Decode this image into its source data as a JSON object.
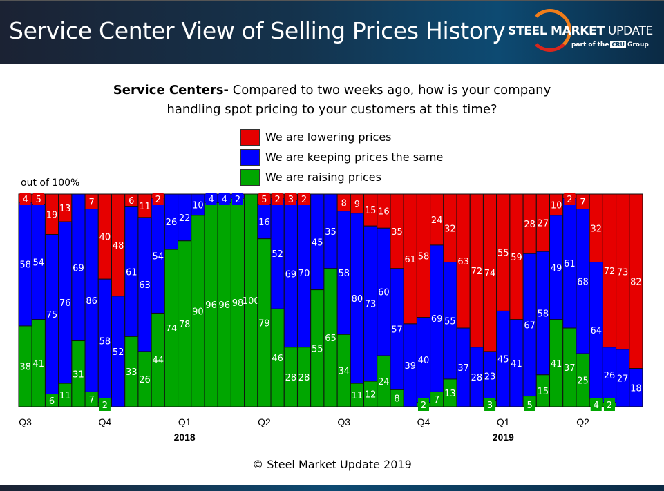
{
  "header": {
    "title": "Service Center View of Selling Prices History",
    "logo_name_bold": "STEEL MARKET",
    "logo_name_light": "UPDATE",
    "logo_sub_pre": "part of the",
    "logo_sub_brand": "CRU",
    "logo_sub_post": "Group"
  },
  "footer": "© Steel Market Update 2019",
  "colors": {
    "lower": "#e60000",
    "same": "#0000ff",
    "raise": "#00a600"
  },
  "chart_data": {
    "type": "bar",
    "stacked": true,
    "title_bold": "Service Centers-",
    "title": " Compared to two weeks ago, how is your company",
    "title_line2": "handling spot pricing to your customers at this time?",
    "ylabel": "out of 100%",
    "ylim": [
      0,
      100
    ],
    "legend": [
      "We are lowering prices",
      "We are keeping prices the same",
      "We are raising prices"
    ],
    "legend_placement": "top-center",
    "quarter_ticks": [
      {
        "bar": 0,
        "label": "Q3"
      },
      {
        "bar": 6,
        "label": "Q4"
      },
      {
        "bar": 12,
        "label": "Q1",
        "year": "2018"
      },
      {
        "bar": 18,
        "label": "Q2"
      },
      {
        "bar": 24,
        "label": "Q3"
      },
      {
        "bar": 30,
        "label": "Q4"
      },
      {
        "bar": 36,
        "label": "Q1",
        "year": "2019"
      },
      {
        "bar": 42,
        "label": "Q2"
      }
    ],
    "series": [
      {
        "name": "We are lowering prices",
        "values": [
          4,
          5,
          19,
          13,
          0,
          7,
          40,
          48,
          6,
          11,
          2,
          0,
          0,
          0,
          0,
          0,
          0,
          0,
          5,
          2,
          3,
          2,
          0,
          0,
          8,
          9,
          15,
          16,
          35,
          61,
          58,
          24,
          32,
          63,
          72,
          74,
          55,
          59,
          28,
          27,
          10,
          2,
          7,
          32,
          72,
          73,
          82
        ]
      },
      {
        "name": "We are keeping prices the same",
        "values": [
          58,
          54,
          75,
          76,
          69,
          86,
          58,
          52,
          61,
          63,
          54,
          26,
          22,
          10,
          4,
          4,
          2,
          0,
          16,
          52,
          69,
          70,
          45,
          35,
          58,
          80,
          73,
          60,
          57,
          39,
          40,
          69,
          55,
          37,
          28,
          23,
          45,
          41,
          67,
          58,
          49,
          61,
          68,
          64,
          26,
          27,
          18
        ]
      },
      {
        "name": "We are raising prices",
        "values": [
          38,
          41,
          6,
          11,
          31,
          7,
          2,
          0,
          33,
          26,
          44,
          74,
          78,
          90,
          96,
          96,
          98,
          100,
          79,
          46,
          28,
          28,
          55,
          65,
          34,
          11,
          12,
          24,
          8,
          0,
          2,
          7,
          13,
          0,
          0,
          3,
          0,
          0,
          5,
          15,
          41,
          37,
          25,
          4,
          2,
          0,
          0
        ]
      }
    ]
  }
}
